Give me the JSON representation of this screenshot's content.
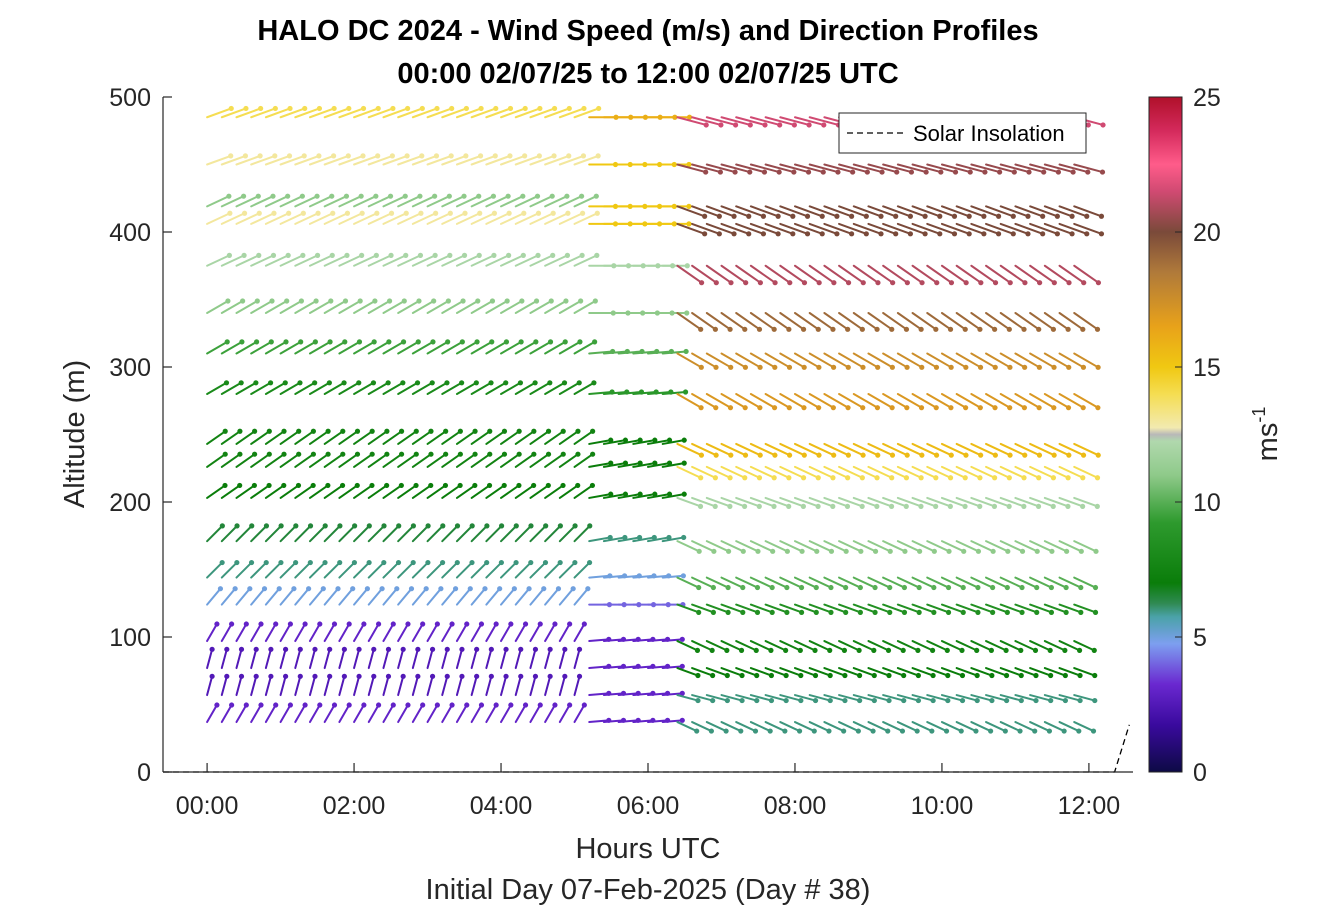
{
  "chart_data": {
    "type": "wind-barb-profile",
    "title_line1": "HALO DC 2024 - Wind Speed (m/s) and Direction Profiles",
    "title_line2": "00:00 02/07/25 to 12:00 02/07/25  UTC",
    "xlabel": "Hours UTC",
    "xlabel2": "Initial Day 07-Feb-2025 (Day # 38)",
    "ylabel": "Altitude (m)",
    "x_ticks": [
      "00:00",
      "02:00",
      "04:00",
      "06:00",
      "08:00",
      "10:00",
      "12:00"
    ],
    "x_tick_hours": [
      0,
      2,
      4,
      6,
      8,
      10,
      12
    ],
    "xlim_hours": [
      -0.6,
      12.6
    ],
    "y_ticks": [
      "0",
      "100",
      "200",
      "300",
      "400",
      "500"
    ],
    "y_tick_values": [
      0,
      100,
      200,
      300,
      400,
      500
    ],
    "ylim": [
      0,
      500
    ],
    "colorbar": {
      "label_base": "ms",
      "label_exp": "-1",
      "ticks": [
        "0",
        "5",
        "10",
        "15",
        "20",
        "25"
      ],
      "tick_values": [
        0,
        5,
        10,
        15,
        20,
        25
      ],
      "range": [
        0,
        25
      ]
    },
    "legend": {
      "label": "Solar Insolation",
      "placement": "top-right",
      "line_style": "dashed"
    },
    "sample_start_hour": 0,
    "sample_end_hour": 11.8,
    "sample_step_hours": 0.2,
    "altitudes_m": [
      37,
      57,
      77,
      97,
      124,
      144,
      171,
      203,
      226,
      243,
      280,
      310,
      340,
      375,
      406,
      419,
      450,
      485
    ],
    "profile_series": [
      {
        "name": "period-1",
        "hours": [
          0,
          5.0
        ],
        "speed_by_altitude": [
          3,
          2.5,
          2.5,
          3,
          5,
          6,
          6.5,
          7,
          7.5,
          7.5,
          8,
          9.5,
          11,
          12,
          13,
          11,
          13,
          14
        ],
        "direction_deg_by_altitude": [
          210,
          195,
          195,
          210,
          220,
          225,
          225,
          235,
          235,
          235,
          240,
          240,
          240,
          245,
          245,
          245,
          250,
          250
        ]
      },
      {
        "name": "period-2",
        "hours": [
          5.2,
          6.2
        ],
        "speed_by_altitude": [
          3,
          3,
          3,
          3,
          4,
          5,
          6,
          7,
          7,
          7,
          9,
          10,
          11,
          12,
          15,
          15,
          15,
          16
        ],
        "direction_deg_by_altitude": [
          265,
          265,
          265,
          265,
          270,
          265,
          260,
          260,
          260,
          260,
          265,
          265,
          270,
          270,
          270,
          270,
          270,
          270
        ]
      },
      {
        "name": "period-3",
        "hours": [
          6.4,
          11.8
        ],
        "speed_by_altitude": [
          6,
          6,
          7,
          7.5,
          8.5,
          10,
          11,
          12,
          14,
          15.5,
          17,
          17.5,
          19,
          21,
          20,
          20,
          20.5,
          21.5
        ],
        "direction_deg_by_altitude": [
          295,
          285,
          290,
          295,
          290,
          295,
          295,
          290,
          295,
          295,
          300,
          300,
          305,
          305,
          290,
          290,
          285,
          285
        ]
      }
    ],
    "solar_insolation": {
      "hours": [
        -0.6,
        12.35,
        12.55
      ],
      "altitude_m": [
        0,
        0,
        35
      ]
    }
  }
}
